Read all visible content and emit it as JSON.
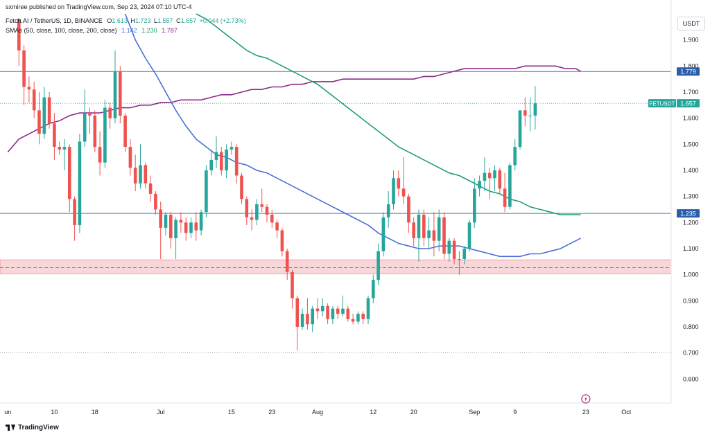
{
  "header": {
    "published_by": "sxmiree published on TradingView.com, Sep 23, 2024 07:10 UTC-4",
    "symbol": "Fetch.AI / TetherUS, 1D, BINANCE",
    "open_label": "O",
    "open": "1.613",
    "high_label": "H",
    "high": "1.723",
    "low_label": "L",
    "low": "1.557",
    "close_label": "C",
    "close": "1.657",
    "change": "+0.044 (+2.73%)",
    "sma_label": "SMAs (50, close, 100, close, 200, close)",
    "sma50_value": "1.142",
    "sma100_value": "1.230",
    "sma200_value": "1.787"
  },
  "unit_badge": "USDT",
  "footer": {
    "brand": "TradingView"
  },
  "colors": {
    "up": "#26a69a",
    "down": "#ef5350",
    "sma50": "#4a6fd6",
    "sma100": "#1e9e74",
    "sma200": "#8b2a8b",
    "hline": "#4b77b3",
    "zone_fill": "#f8d7db",
    "zone_border": "#ef5350",
    "badge_bg": "#2a5eab",
    "last_bg": "#26a69a"
  },
  "chart_data": {
    "type": "candlestick",
    "title": "Fetch.AI / TetherUS, 1D, BINANCE",
    "ylabel": "USDT",
    "ylim": [
      0.545,
      2.0
    ],
    "y_ticks": [
      0.6,
      0.7,
      0.8,
      0.9,
      1.0,
      1.1,
      1.2,
      1.3,
      1.4,
      1.5,
      1.6,
      1.7,
      1.8,
      1.9
    ],
    "y_tick_labels": [
      "0.600",
      "0.700",
      "0.800",
      "0.900",
      "1.000",
      "1.100",
      "1.200",
      "1.300",
      "1.400",
      "1.500",
      "1.600",
      "1.700",
      "1.800",
      "1.900"
    ],
    "x_ticks": [
      {
        "label": "un",
        "index": -2.2
      },
      {
        "label": "10",
        "index": 7
      },
      {
        "label": "18",
        "index": 15
      },
      {
        "label": "Jul",
        "index": 28
      },
      {
        "label": "15",
        "index": 42
      },
      {
        "label": "23",
        "index": 50
      },
      {
        "label": "Aug",
        "index": 59
      },
      {
        "label": "12",
        "index": 70
      },
      {
        "label": "20",
        "index": 78
      },
      {
        "label": "Sep",
        "index": 90
      },
      {
        "label": "9",
        "index": 98
      },
      {
        "label": "23",
        "index": 112
      },
      {
        "label": "Oct",
        "index": 120
      }
    ],
    "candles": [
      {
        "o": 1.98,
        "h": 1.98,
        "l": 1.8,
        "c": 1.86
      },
      {
        "o": 1.86,
        "h": 1.88,
        "l": 1.65,
        "c": 1.72
      },
      {
        "o": 1.72,
        "h": 1.76,
        "l": 1.66,
        "c": 1.71
      },
      {
        "o": 1.71,
        "h": 1.74,
        "l": 1.6,
        "c": 1.63
      },
      {
        "o": 1.63,
        "h": 1.7,
        "l": 1.5,
        "c": 1.54
      },
      {
        "o": 1.54,
        "h": 1.72,
        "l": 1.52,
        "c": 1.68
      },
      {
        "o": 1.68,
        "h": 1.7,
        "l": 1.56,
        "c": 1.58
      },
      {
        "o": 1.58,
        "h": 1.62,
        "l": 1.44,
        "c": 1.49
      },
      {
        "o": 1.49,
        "h": 1.51,
        "l": 1.46,
        "c": 1.48
      },
      {
        "o": 1.48,
        "h": 1.52,
        "l": 1.4,
        "c": 1.49
      },
      {
        "o": 1.49,
        "h": 1.5,
        "l": 1.24,
        "c": 1.29
      },
      {
        "o": 1.29,
        "h": 1.3,
        "l": 1.13,
        "c": 1.19
      },
      {
        "o": 1.19,
        "h": 1.54,
        "l": 1.16,
        "c": 1.51
      },
      {
        "o": 1.51,
        "h": 1.71,
        "l": 1.49,
        "c": 1.62
      },
      {
        "o": 1.62,
        "h": 1.64,
        "l": 1.54,
        "c": 1.61
      },
      {
        "o": 1.61,
        "h": 1.63,
        "l": 1.47,
        "c": 1.49
      },
      {
        "o": 1.49,
        "h": 1.55,
        "l": 1.38,
        "c": 1.43
      },
      {
        "o": 1.43,
        "h": 1.67,
        "l": 1.41,
        "c": 1.64
      },
      {
        "o": 1.64,
        "h": 1.66,
        "l": 1.56,
        "c": 1.6
      },
      {
        "o": 1.6,
        "h": 1.86,
        "l": 1.58,
        "c": 1.78
      },
      {
        "o": 1.78,
        "h": 1.8,
        "l": 1.58,
        "c": 1.61
      },
      {
        "o": 1.61,
        "h": 1.62,
        "l": 1.47,
        "c": 1.49
      },
      {
        "o": 1.49,
        "h": 1.52,
        "l": 1.38,
        "c": 1.41
      },
      {
        "o": 1.41,
        "h": 1.46,
        "l": 1.32,
        "c": 1.35
      },
      {
        "o": 1.35,
        "h": 1.5,
        "l": 1.33,
        "c": 1.42
      },
      {
        "o": 1.42,
        "h": 1.43,
        "l": 1.33,
        "c": 1.35
      },
      {
        "o": 1.35,
        "h": 1.38,
        "l": 1.28,
        "c": 1.31
      },
      {
        "o": 1.31,
        "h": 1.32,
        "l": 1.23,
        "c": 1.25
      },
      {
        "o": 1.25,
        "h": 1.28,
        "l": 1.06,
        "c": 1.18
      },
      {
        "o": 1.18,
        "h": 1.24,
        "l": 1.15,
        "c": 1.23
      },
      {
        "o": 1.23,
        "h": 1.24,
        "l": 1.1,
        "c": 1.14
      },
      {
        "o": 1.14,
        "h": 1.22,
        "l": 1.06,
        "c": 1.21
      },
      {
        "o": 1.21,
        "h": 1.24,
        "l": 1.16,
        "c": 1.2
      },
      {
        "o": 1.2,
        "h": 1.22,
        "l": 1.13,
        "c": 1.16
      },
      {
        "o": 1.16,
        "h": 1.22,
        "l": 1.14,
        "c": 1.2
      },
      {
        "o": 1.2,
        "h": 1.24,
        "l": 1.13,
        "c": 1.17
      },
      {
        "o": 1.17,
        "h": 1.25,
        "l": 1.15,
        "c": 1.24
      },
      {
        "o": 1.24,
        "h": 1.42,
        "l": 1.22,
        "c": 1.4
      },
      {
        "o": 1.4,
        "h": 1.48,
        "l": 1.38,
        "c": 1.44
      },
      {
        "o": 1.44,
        "h": 1.53,
        "l": 1.41,
        "c": 1.47
      },
      {
        "o": 1.47,
        "h": 1.49,
        "l": 1.38,
        "c": 1.4
      },
      {
        "o": 1.4,
        "h": 1.5,
        "l": 1.37,
        "c": 1.48
      },
      {
        "o": 1.48,
        "h": 1.51,
        "l": 1.46,
        "c": 1.49
      },
      {
        "o": 1.49,
        "h": 1.5,
        "l": 1.35,
        "c": 1.38
      },
      {
        "o": 1.38,
        "h": 1.39,
        "l": 1.27,
        "c": 1.29
      },
      {
        "o": 1.29,
        "h": 1.3,
        "l": 1.19,
        "c": 1.22
      },
      {
        "o": 1.22,
        "h": 1.25,
        "l": 1.17,
        "c": 1.21
      },
      {
        "o": 1.21,
        "h": 1.29,
        "l": 1.19,
        "c": 1.27
      },
      {
        "o": 1.27,
        "h": 1.33,
        "l": 1.24,
        "c": 1.26
      },
      {
        "o": 1.26,
        "h": 1.27,
        "l": 1.2,
        "c": 1.23
      },
      {
        "o": 1.23,
        "h": 1.25,
        "l": 1.18,
        "c": 1.2
      },
      {
        "o": 1.2,
        "h": 1.21,
        "l": 1.14,
        "c": 1.17
      },
      {
        "o": 1.17,
        "h": 1.18,
        "l": 1.07,
        "c": 1.09
      },
      {
        "o": 1.09,
        "h": 1.1,
        "l": 0.98,
        "c": 1.01
      },
      {
        "o": 1.01,
        "h": 1.02,
        "l": 0.87,
        "c": 0.91
      },
      {
        "o": 0.91,
        "h": 0.92,
        "l": 0.71,
        "c": 0.8
      },
      {
        "o": 0.8,
        "h": 0.87,
        "l": 0.79,
        "c": 0.85
      },
      {
        "o": 0.85,
        "h": 0.91,
        "l": 0.79,
        "c": 0.81
      },
      {
        "o": 0.81,
        "h": 0.88,
        "l": 0.78,
        "c": 0.87
      },
      {
        "o": 0.87,
        "h": 0.91,
        "l": 0.83,
        "c": 0.86
      },
      {
        "o": 0.86,
        "h": 0.91,
        "l": 0.84,
        "c": 0.88
      },
      {
        "o": 0.88,
        "h": 0.89,
        "l": 0.81,
        "c": 0.83
      },
      {
        "o": 0.83,
        "h": 0.88,
        "l": 0.81,
        "c": 0.87
      },
      {
        "o": 0.87,
        "h": 0.88,
        "l": 0.83,
        "c": 0.85
      },
      {
        "o": 0.85,
        "h": 0.92,
        "l": 0.84,
        "c": 0.87
      },
      {
        "o": 0.87,
        "h": 0.88,
        "l": 0.82,
        "c": 0.83
      },
      {
        "o": 0.83,
        "h": 0.85,
        "l": 0.81,
        "c": 0.82
      },
      {
        "o": 0.82,
        "h": 0.86,
        "l": 0.81,
        "c": 0.85
      },
      {
        "o": 0.85,
        "h": 0.86,
        "l": 0.81,
        "c": 0.83
      },
      {
        "o": 0.83,
        "h": 0.92,
        "l": 0.81,
        "c": 0.91
      },
      {
        "o": 0.91,
        "h": 1.0,
        "l": 0.89,
        "c": 0.98
      },
      {
        "o": 0.98,
        "h": 1.12,
        "l": 0.96,
        "c": 1.09
      },
      {
        "o": 1.09,
        "h": 1.24,
        "l": 1.07,
        "c": 1.22
      },
      {
        "o": 1.22,
        "h": 1.32,
        "l": 1.18,
        "c": 1.27
      },
      {
        "o": 1.27,
        "h": 1.4,
        "l": 1.25,
        "c": 1.37
      },
      {
        "o": 1.37,
        "h": 1.4,
        "l": 1.3,
        "c": 1.33
      },
      {
        "o": 1.33,
        "h": 1.45,
        "l": 1.27,
        "c": 1.3
      },
      {
        "o": 1.3,
        "h": 1.31,
        "l": 1.16,
        "c": 1.2
      },
      {
        "o": 1.2,
        "h": 1.22,
        "l": 1.11,
        "c": 1.14
      },
      {
        "o": 1.14,
        "h": 1.25,
        "l": 1.05,
        "c": 1.23
      },
      {
        "o": 1.23,
        "h": 1.25,
        "l": 1.11,
        "c": 1.14
      },
      {
        "o": 1.14,
        "h": 1.22,
        "l": 1.1,
        "c": 1.17
      },
      {
        "o": 1.17,
        "h": 1.24,
        "l": 1.07,
        "c": 1.13
      },
      {
        "o": 1.13,
        "h": 1.25,
        "l": 1.09,
        "c": 1.22
      },
      {
        "o": 1.22,
        "h": 1.24,
        "l": 1.06,
        "c": 1.08
      },
      {
        "o": 1.08,
        "h": 1.14,
        "l": 1.05,
        "c": 1.13
      },
      {
        "o": 1.13,
        "h": 1.14,
        "l": 1.04,
        "c": 1.06
      },
      {
        "o": 1.06,
        "h": 1.09,
        "l": 1.0,
        "c": 1.06
      },
      {
        "o": 1.06,
        "h": 1.11,
        "l": 1.04,
        "c": 1.1
      },
      {
        "o": 1.1,
        "h": 1.21,
        "l": 1.09,
        "c": 1.2
      },
      {
        "o": 1.2,
        "h": 1.37,
        "l": 1.18,
        "c": 1.33
      },
      {
        "o": 1.33,
        "h": 1.38,
        "l": 1.3,
        "c": 1.36
      },
      {
        "o": 1.36,
        "h": 1.45,
        "l": 1.32,
        "c": 1.39
      },
      {
        "o": 1.39,
        "h": 1.41,
        "l": 1.29,
        "c": 1.37
      },
      {
        "o": 1.37,
        "h": 1.42,
        "l": 1.32,
        "c": 1.4
      },
      {
        "o": 1.4,
        "h": 1.41,
        "l": 1.31,
        "c": 1.33
      },
      {
        "o": 1.33,
        "h": 1.39,
        "l": 1.24,
        "c": 1.26
      },
      {
        "o": 1.26,
        "h": 1.43,
        "l": 1.25,
        "c": 1.42
      },
      {
        "o": 1.42,
        "h": 1.52,
        "l": 1.4,
        "c": 1.49
      },
      {
        "o": 1.49,
        "h": 1.62,
        "l": 1.48,
        "c": 1.63
      },
      {
        "o": 1.63,
        "h": 1.68,
        "l": 1.57,
        "c": 1.61
      },
      {
        "o": 1.61,
        "h": 1.68,
        "l": 1.55,
        "c": 1.61
      },
      {
        "o": 1.61,
        "h": 1.723,
        "l": 1.557,
        "c": 1.657
      }
    ],
    "sma50": [
      [
        21.0,
        2.0
      ],
      [
        23.0,
        1.9
      ],
      [
        25.0,
        1.83
      ],
      [
        27.0,
        1.77
      ],
      [
        29.0,
        1.7
      ],
      [
        31.0,
        1.63
      ],
      [
        33.0,
        1.57
      ],
      [
        35.0,
        1.52
      ],
      [
        37.0,
        1.49
      ],
      [
        39.0,
        1.46
      ],
      [
        41.0,
        1.45
      ],
      [
        43.0,
        1.43
      ],
      [
        45.0,
        1.42
      ],
      [
        47.0,
        1.4
      ],
      [
        49.0,
        1.39
      ],
      [
        51.0,
        1.37
      ],
      [
        53.0,
        1.35
      ],
      [
        55.0,
        1.33
      ],
      [
        57.0,
        1.31
      ],
      [
        59.0,
        1.29
      ],
      [
        61.0,
        1.27
      ],
      [
        63.0,
        1.25
      ],
      [
        65.0,
        1.23
      ],
      [
        67.0,
        1.21
      ],
      [
        69.0,
        1.19
      ],
      [
        71.0,
        1.16
      ],
      [
        73.0,
        1.14
      ],
      [
        75.0,
        1.12
      ],
      [
        77.0,
        1.11
      ],
      [
        79.0,
        1.1
      ],
      [
        81.0,
        1.1
      ],
      [
        83.0,
        1.11
      ],
      [
        85.0,
        1.11
      ],
      [
        87.0,
        1.11
      ],
      [
        89.0,
        1.1
      ],
      [
        91.0,
        1.09
      ],
      [
        93.0,
        1.08
      ],
      [
        95.0,
        1.07
      ],
      [
        97.0,
        1.07
      ],
      [
        99.0,
        1.07
      ],
      [
        101.0,
        1.08
      ],
      [
        103.0,
        1.08
      ],
      [
        105.0,
        1.09
      ],
      [
        107.0,
        1.1
      ],
      [
        109.0,
        1.12
      ],
      [
        111.0,
        1.14
      ]
    ],
    "sma100": [
      [
        35.0,
        2.0
      ],
      [
        37.0,
        1.98
      ],
      [
        39.0,
        1.95
      ],
      [
        41.0,
        1.92
      ],
      [
        43.0,
        1.89
      ],
      [
        45.0,
        1.86
      ],
      [
        47.0,
        1.84
      ],
      [
        49.0,
        1.83
      ],
      [
        51.0,
        1.81
      ],
      [
        53.0,
        1.79
      ],
      [
        55.0,
        1.77
      ],
      [
        57.0,
        1.75
      ],
      [
        59.0,
        1.73
      ],
      [
        61.0,
        1.7
      ],
      [
        63.0,
        1.67
      ],
      [
        65.0,
        1.64
      ],
      [
        67.0,
        1.61
      ],
      [
        69.0,
        1.58
      ],
      [
        71.0,
        1.55
      ],
      [
        73.0,
        1.52
      ],
      [
        75.0,
        1.49
      ],
      [
        77.0,
        1.47
      ],
      [
        79.0,
        1.45
      ],
      [
        81.0,
        1.43
      ],
      [
        83.0,
        1.41
      ],
      [
        85.0,
        1.39
      ],
      [
        87.0,
        1.38
      ],
      [
        89.0,
        1.36
      ],
      [
        91.0,
        1.34
      ],
      [
        93.0,
        1.32
      ],
      [
        95.0,
        1.31
      ],
      [
        97.0,
        1.29
      ],
      [
        99.0,
        1.28
      ],
      [
        101.0,
        1.26
      ],
      [
        103.0,
        1.25
      ],
      [
        105.0,
        1.24
      ],
      [
        107.0,
        1.23
      ],
      [
        109.0,
        1.23
      ],
      [
        111.0,
        1.23
      ]
    ],
    "sma200": [
      [
        -2.2,
        1.47
      ],
      [
        0.0,
        1.52
      ],
      [
        2.0,
        1.54
      ],
      [
        4.0,
        1.56
      ],
      [
        6.0,
        1.58
      ],
      [
        8.0,
        1.59
      ],
      [
        10.0,
        1.61
      ],
      [
        12.0,
        1.62
      ],
      [
        14.0,
        1.62
      ],
      [
        16.0,
        1.62
      ],
      [
        18.0,
        1.63
      ],
      [
        20.0,
        1.64
      ],
      [
        22.0,
        1.64
      ],
      [
        24.0,
        1.65
      ],
      [
        26.0,
        1.65
      ],
      [
        28.0,
        1.66
      ],
      [
        30.0,
        1.66
      ],
      [
        32.0,
        1.67
      ],
      [
        34.0,
        1.67
      ],
      [
        36.0,
        1.67
      ],
      [
        38.0,
        1.68
      ],
      [
        40.0,
        1.69
      ],
      [
        42.0,
        1.69
      ],
      [
        44.0,
        1.7
      ],
      [
        46.0,
        1.71
      ],
      [
        48.0,
        1.71
      ],
      [
        50.0,
        1.72
      ],
      [
        52.0,
        1.72
      ],
      [
        54.0,
        1.73
      ],
      [
        56.0,
        1.73
      ],
      [
        58.0,
        1.74
      ],
      [
        60.0,
        1.74
      ],
      [
        62.0,
        1.74
      ],
      [
        64.0,
        1.75
      ],
      [
        66.0,
        1.75
      ],
      [
        68.0,
        1.75
      ],
      [
        70.0,
        1.75
      ],
      [
        72.0,
        1.75
      ],
      [
        74.0,
        1.75
      ],
      [
        76.0,
        1.75
      ],
      [
        78.0,
        1.75
      ],
      [
        80.0,
        1.76
      ],
      [
        82.0,
        1.76
      ],
      [
        84.0,
        1.77
      ],
      [
        86.0,
        1.78
      ],
      [
        88.0,
        1.79
      ],
      [
        90.0,
        1.79
      ],
      [
        92.0,
        1.79
      ],
      [
        94.0,
        1.79
      ],
      [
        96.0,
        1.79
      ],
      [
        98.0,
        1.79
      ],
      [
        100.0,
        1.8
      ],
      [
        102.0,
        1.8
      ],
      [
        104.0,
        1.8
      ],
      [
        106.0,
        1.8
      ],
      [
        108.0,
        1.79
      ],
      [
        110.0,
        1.79
      ],
      [
        111.0,
        1.78
      ]
    ],
    "hlines": [
      {
        "value": 1.779,
        "label": "1.779"
      },
      {
        "value": 1.235,
        "label": "1.235"
      }
    ],
    "zone": {
      "low": 1.003,
      "high": 1.057,
      "mid": 1.027
    },
    "last_price": {
      "value": 1.657,
      "label": "1.657",
      "name": "FETUSDT"
    }
  }
}
